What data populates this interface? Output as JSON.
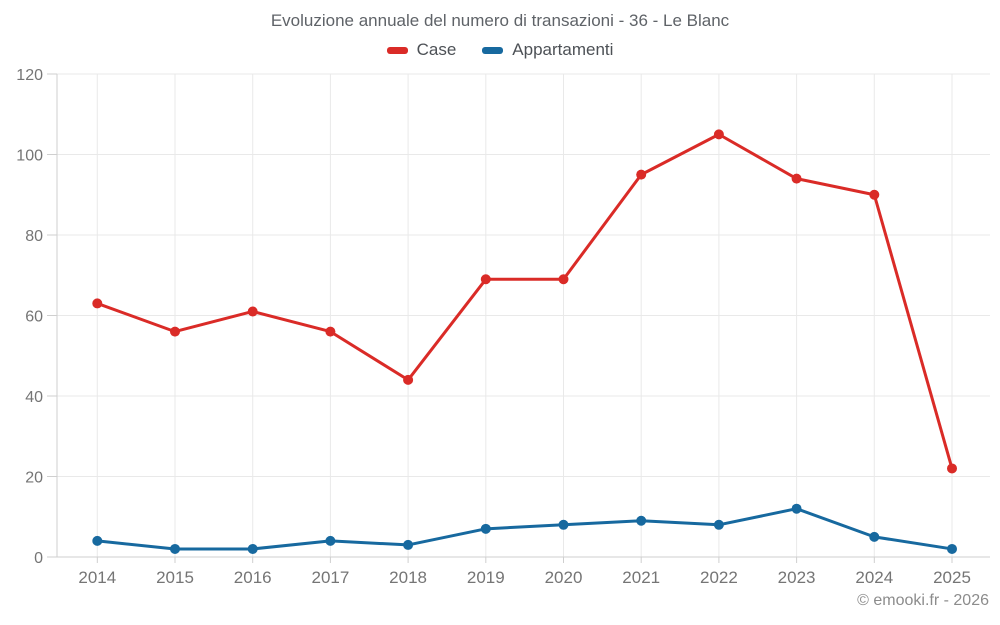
{
  "chart_data": {
    "type": "line",
    "title": "Evoluzione annuale del numero di transazioni - 36 - Le Blanc",
    "categories": [
      "2014",
      "2015",
      "2016",
      "2017",
      "2018",
      "2019",
      "2020",
      "2021",
      "2022",
      "2023",
      "2024",
      "2025"
    ],
    "series": [
      {
        "name": "Case",
        "color": "#da2b27",
        "values": [
          63,
          56,
          61,
          56,
          44,
          69,
          69,
          95,
          105,
          94,
          90,
          22
        ]
      },
      {
        "name": "Appartamenti",
        "color": "#17699f",
        "values": [
          4,
          2,
          2,
          4,
          3,
          7,
          8,
          9,
          8,
          12,
          5,
          2
        ]
      }
    ],
    "xlabel": "",
    "ylabel": "",
    "ylim": [
      0,
      120
    ],
    "yticks": [
      0,
      20,
      40,
      60,
      80,
      100,
      120
    ],
    "grid": true,
    "legend_position": "top"
  },
  "footer": {
    "copyright": "© emooki.fr - 2026"
  }
}
